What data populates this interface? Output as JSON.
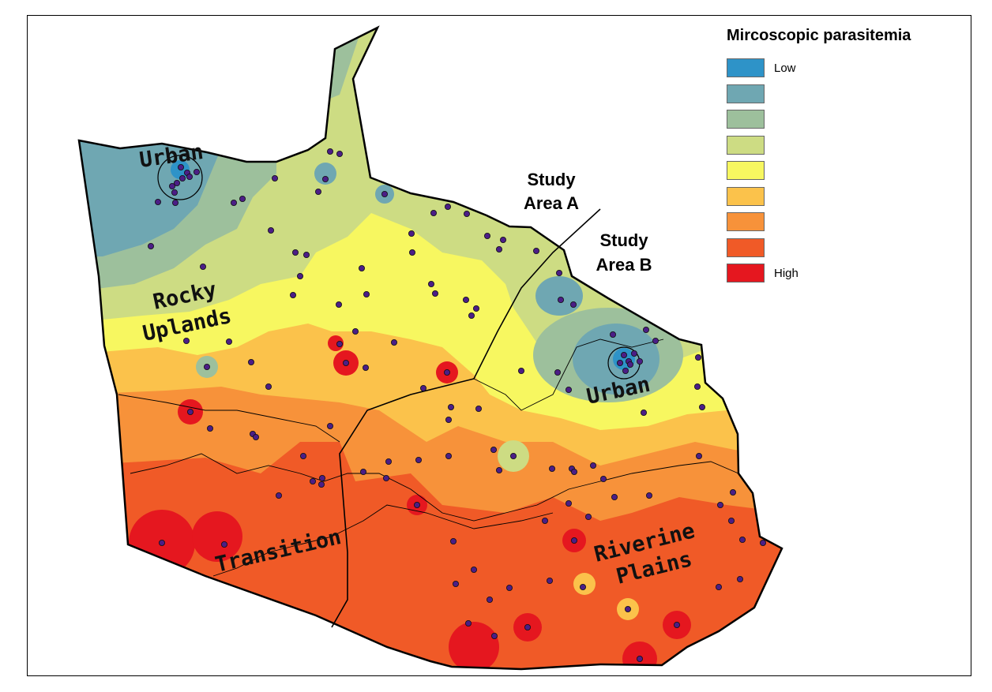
{
  "legend": {
    "title": "Mircoscopic parasitemia",
    "classes": [
      {
        "color": "#2E93C8",
        "label": "Low"
      },
      {
        "color": "#6FA7B2",
        "label": ""
      },
      {
        "color": "#9DC09C",
        "label": ""
      },
      {
        "color": "#CDDC83",
        "label": ""
      },
      {
        "color": "#F7F760",
        "label": ""
      },
      {
        "color": "#FBC24B",
        "label": ""
      },
      {
        "color": "#F7923A",
        "label": ""
      },
      {
        "color": "#F05A27",
        "label": ""
      },
      {
        "color": "#E5171F",
        "label": "High"
      }
    ]
  },
  "labels": {
    "urban_nw": "Urban",
    "rocky": "Rocky",
    "uplands": "Uplands",
    "urban_se": "Urban",
    "transition": "Transition",
    "riverine": "Riverine",
    "plains": "Plains",
    "study_a_line1": "Study",
    "study_a_line2": "Area A",
    "study_b_line1": "Study",
    "study_b_line2": "Area B"
  },
  "colors": {
    "boundary": "#000000",
    "sample_point": "#4B1E86"
  }
}
